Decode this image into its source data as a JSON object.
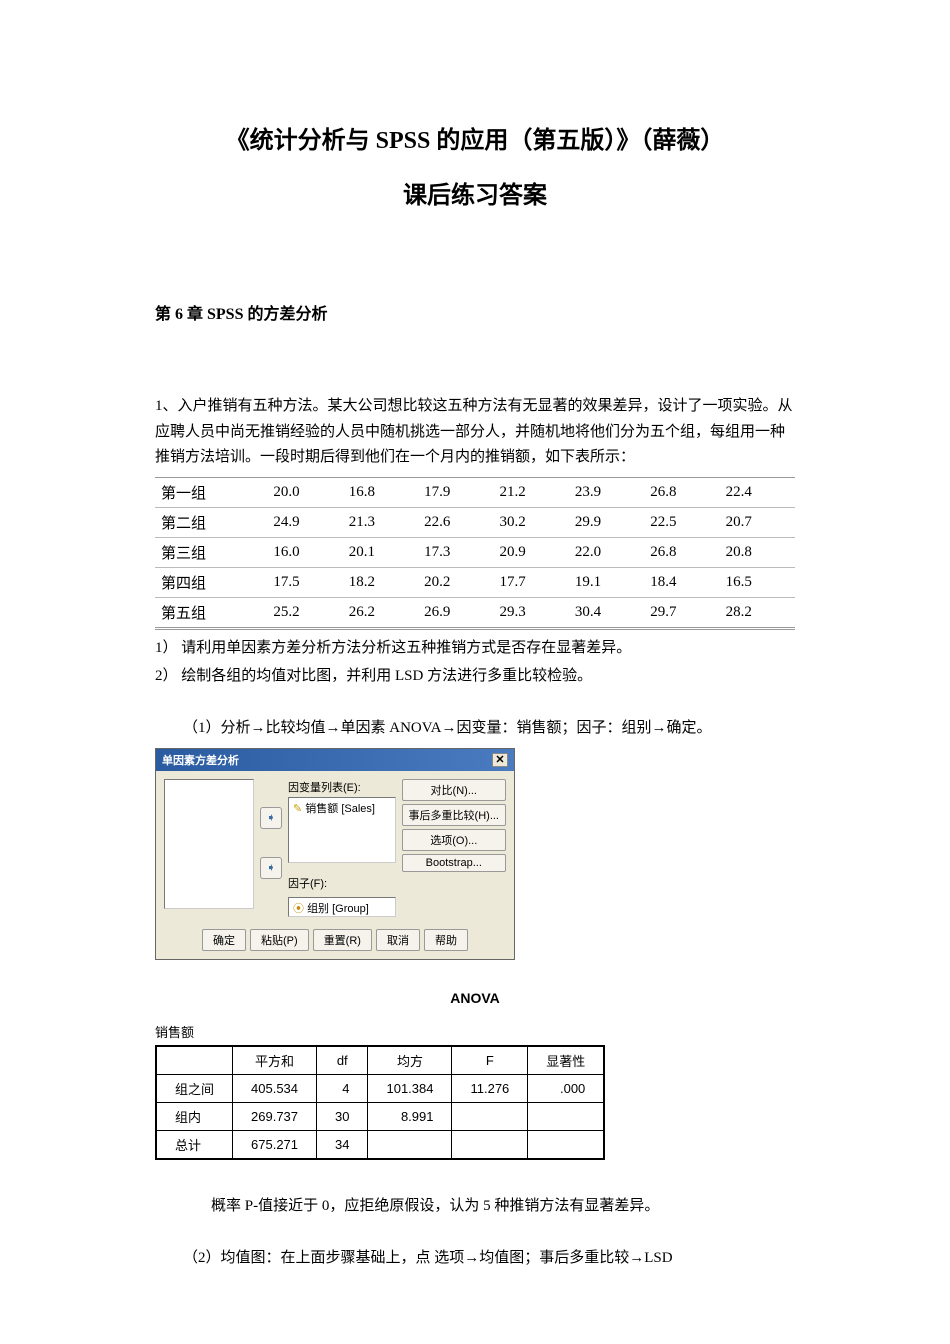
{
  "titles": {
    "main": "《统计分析与 SPSS 的应用（第五版）》（薛薇）",
    "sub": "课后练习答案",
    "chapter": "第 6 章 SPSS 的方差分析"
  },
  "problem": {
    "intro": "1、入户推销有五种方法。某大公司想比较这五种方法有无显著的效果差异，设计了一项实验。从应聘人员中尚无推销经验的人员中随机挑选一部分人，并随机地将他们分为五个组，每组用一种推销方法培训。一段时期后得到他们在一个月内的推销额，如下表所示：",
    "row_labels": [
      "第一组",
      "第二组",
      "第三组",
      "第四组",
      "第五组"
    ],
    "data": [
      [
        "20.0",
        "16.8",
        "17.9",
        "21.2",
        "23.9",
        "26.8",
        "22.4"
      ],
      [
        "24.9",
        "21.3",
        "22.6",
        "30.2",
        "29.9",
        "22.5",
        "20.7"
      ],
      [
        "16.0",
        "20.1",
        "17.3",
        "20.9",
        "22.0",
        "26.8",
        "20.8"
      ],
      [
        "17.5",
        "18.2",
        "20.2",
        "17.7",
        "19.1",
        "18.4",
        "16.5"
      ],
      [
        "25.2",
        "26.2",
        "26.9",
        "29.3",
        "30.4",
        "29.7",
        "28.2"
      ]
    ],
    "q1": "1） 请利用单因素方差分析方法分析这五种推销方式是否存在显著差异。",
    "q2": "2） 绘制各组的均值对比图，并利用 LSD 方法进行多重比较检验。"
  },
  "step1": "（1）分析→比较均值→单因素 ANOVA→因变量：销售额；因子：组别→确定。",
  "dialog": {
    "title": "单因素方差分析",
    "dep_label": "因变量列表(E):",
    "dep_item": "销售额 [Sales]",
    "factor_label": "因子(F):",
    "factor_item": "组别 [Group]",
    "right_buttons": [
      "对比(N)...",
      "事后多重比较(H)...",
      "选项(O)...",
      "Bootstrap..."
    ],
    "bottom_buttons": [
      "确定",
      "粘贴(P)",
      "重置(R)",
      "取消",
      "帮助"
    ]
  },
  "anova": {
    "title": "ANOVA",
    "subtitle": "销售额",
    "headers": [
      "",
      "平方和",
      "df",
      "均方",
      "F",
      "显著性"
    ],
    "rows": [
      [
        "组之间",
        "405.534",
        "4",
        "101.384",
        "11.276",
        ".000"
      ],
      [
        "组内",
        "269.737",
        "30",
        "8.991",
        "",
        ""
      ],
      [
        "总计",
        "675.271",
        "34",
        "",
        "",
        ""
      ]
    ]
  },
  "conclusion": "概率 P-值接近于 0，应拒绝原假设，认为 5 种推销方法有显著差异。",
  "step2": "（2）均值图：在上面步骤基础上，点 选项→均值图；事后多重比较→LSD"
}
